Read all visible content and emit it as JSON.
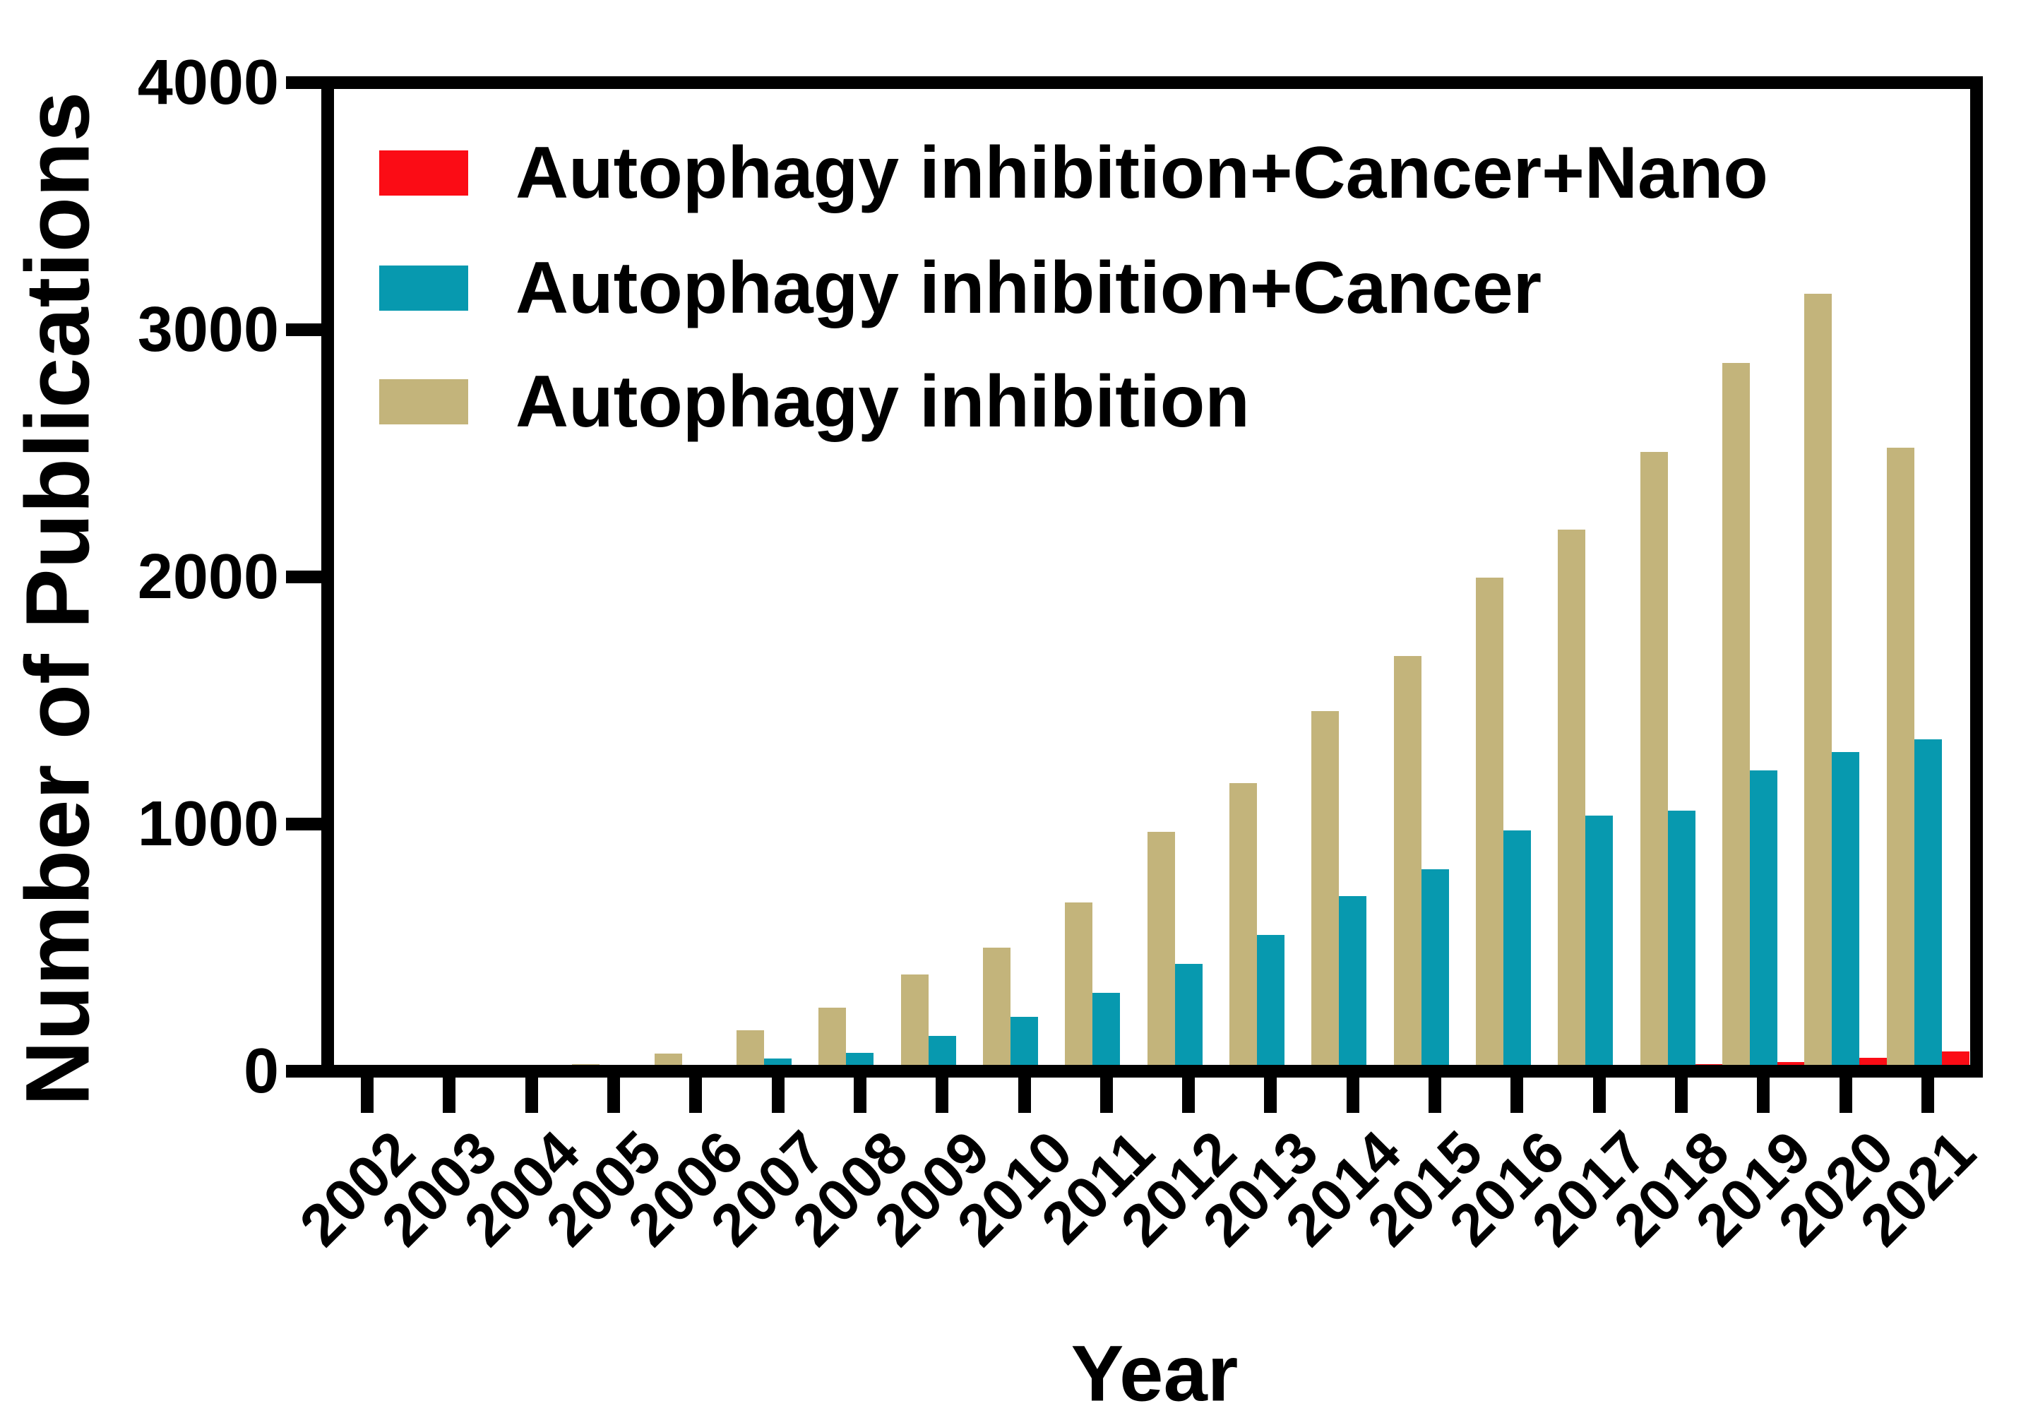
{
  "axes": {
    "y_title": "Number of Publications",
    "x_title": "Year"
  },
  "legend": {
    "items": [
      {
        "label": "Autophagy inhibition+Cancer+Nano",
        "color": "#FB0C15"
      },
      {
        "label": "Autophagy inhibition+Cancer",
        "color": "#0799AF"
      },
      {
        "label": "Autophagy inhibition",
        "color": "#C3B47B"
      }
    ]
  },
  "chart_data": {
    "type": "bar",
    "title": "",
    "xlabel": "Year",
    "ylabel": "Number of Publications",
    "ylim": [
      0,
      4000
    ],
    "yticks": [
      0,
      1000,
      2000,
      3000,
      4000
    ],
    "grid": false,
    "legend_position": "top-left",
    "categories": [
      "2002",
      "2003",
      "2004",
      "2005",
      "2006",
      "2007",
      "2008",
      "2009",
      "2010",
      "2011",
      "2012",
      "2013",
      "2014",
      "2015",
      "2016",
      "2017",
      "2018",
      "2019",
      "2020",
      "2021"
    ],
    "series": [
      {
        "name": "Autophagy inhibition",
        "color": "#C3B47B",
        "values": [
          3,
          8,
          20,
          30,
          72,
          167,
          256,
          391,
          500,
          684,
          969,
          1165,
          1458,
          1680,
          1996,
          2191,
          2505,
          2867,
          3146,
          2522
        ]
      },
      {
        "name": "Autophagy inhibition+Cancer",
        "color": "#0799AF",
        "values": [
          0,
          0,
          3,
          6,
          14,
          52,
          75,
          144,
          221,
          317,
          434,
          552,
          708,
          817,
          975,
          1033,
          1055,
          1216,
          1291,
          1343
        ]
      },
      {
        "name": "Autophagy inhibition+Cancer+Nano",
        "color": "#FB0C15",
        "values": [
          0,
          0,
          0,
          0,
          0,
          0,
          0,
          0,
          0,
          0,
          0,
          0,
          0,
          0,
          0,
          20,
          30,
          36,
          55,
          81
        ]
      }
    ]
  }
}
